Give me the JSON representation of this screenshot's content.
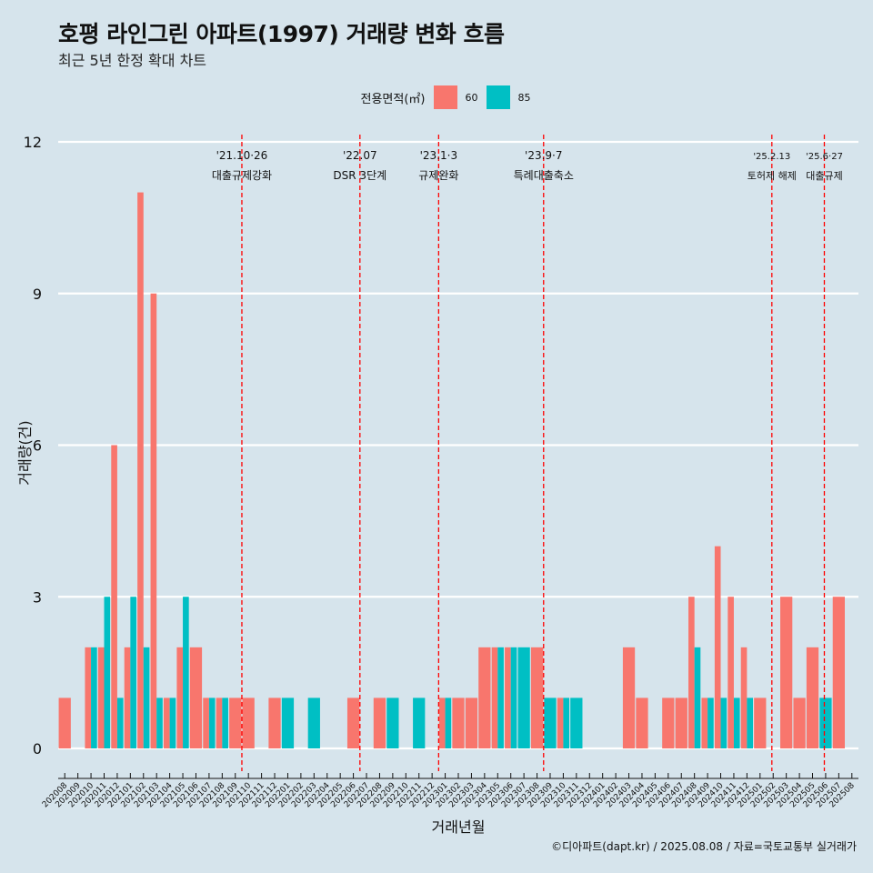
{
  "title": "호평 라인그린 아파트(1997) 거래량 변화 흐름",
  "subtitle": "최근 5년 한정 확대 차트",
  "caption": "©디아파트(dapt.kr) / 2025.08.08 / 자료=국토교통부 실거래가",
  "colors": {
    "s60": "#f8766d",
    "s85": "#00bfc4",
    "vline": "#ff0000",
    "grid": "#ffffff"
  },
  "chart_data": {
    "type": "bar",
    "xlabel": "거래년월",
    "ylabel": "거래량(건)",
    "ylim": [
      -0.5,
      12
    ],
    "yticks": [
      0,
      3,
      6,
      9,
      12
    ],
    "legend": {
      "title": "전용면적(㎡)",
      "position": "top"
    },
    "categories": [
      "202008",
      "202009",
      "202010",
      "202011",
      "202012",
      "202101",
      "202102",
      "202103",
      "202104",
      "202105",
      "202106",
      "202107",
      "202108",
      "202109",
      "202110",
      "202111",
      "202112",
      "202201",
      "202202",
      "202203",
      "202204",
      "202205",
      "202206",
      "202207",
      "202208",
      "202209",
      "202210",
      "202211",
      "202212",
      "202301",
      "202302",
      "202303",
      "202304",
      "202305",
      "202306",
      "202307",
      "202308",
      "202309",
      "202310",
      "202311",
      "202312",
      "202401",
      "202402",
      "202403",
      "202404",
      "202405",
      "202406",
      "202407",
      "202408",
      "202409",
      "202410",
      "202411",
      "202412",
      "202501",
      "202502",
      "202503",
      "202504",
      "202505",
      "202506",
      "202507",
      "202508"
    ],
    "series": [
      {
        "name": "60",
        "color": "#f8766d",
        "values": [
          1,
          0,
          2,
          2,
          6,
          2,
          11,
          9,
          1,
          2,
          2,
          1,
          1,
          1,
          1,
          0,
          1,
          0,
          0,
          0,
          0,
          0,
          1,
          0,
          1,
          0,
          0,
          0,
          0,
          1,
          1,
          1,
          2,
          2,
          2,
          0,
          2,
          0,
          1,
          0,
          0,
          0,
          0,
          2,
          1,
          0,
          1,
          1,
          3,
          1,
          4,
          3,
          2,
          1,
          0,
          3,
          1,
          2,
          0,
          3,
          0
        ]
      },
      {
        "name": "85",
        "color": "#00bfc4",
        "values": [
          0,
          0,
          2,
          3,
          1,
          3,
          2,
          1,
          1,
          3,
          0,
          1,
          1,
          0,
          0,
          0,
          0,
          1,
          0,
          1,
          0,
          0,
          0,
          0,
          0,
          1,
          0,
          1,
          0,
          1,
          0,
          0,
          0,
          2,
          2,
          2,
          0,
          1,
          1,
          1,
          0,
          0,
          0,
          0,
          0,
          0,
          0,
          0,
          2,
          1,
          1,
          1,
          1,
          0,
          0,
          0,
          0,
          0,
          1,
          0,
          0
        ]
      }
    ],
    "events": [
      {
        "x": 14.0,
        "date": "'21.10·26",
        "label": "대출규제강화"
      },
      {
        "x": 23.0,
        "date": "'22.07",
        "label": "DSR 3단계"
      },
      {
        "x": 29.0,
        "date": "'23.1·3",
        "label": "규제완화"
      },
      {
        "x": 37.0,
        "date": "'23.9·7",
        "label": "특례대출축소"
      },
      {
        "x": 54.4,
        "date": "'25.2.13",
        "label": "토허제 해제"
      },
      {
        "x": 58.4,
        "date": "'25.6·27",
        "label": "대출규제"
      }
    ]
  }
}
